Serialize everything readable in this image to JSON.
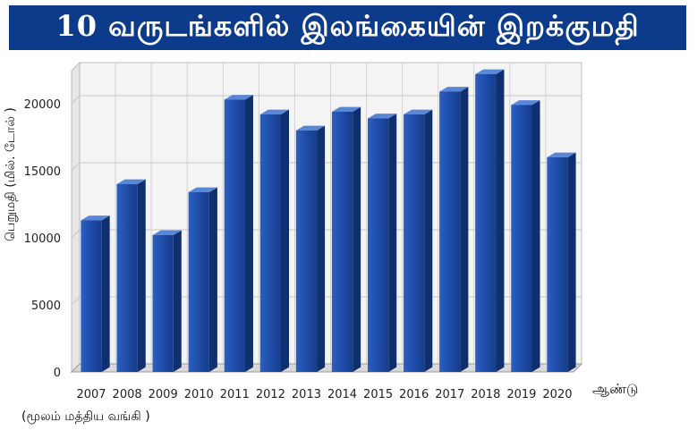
{
  "title": "10 வருடங்களில் இலங்கையின் இறக்குமதி",
  "source": "(மூலம் மத்திய வங்கி )",
  "chart_data": {
    "type": "bar",
    "title": "10 வருடங்களில் இலங்கையின் இறக்குமதி",
    "xlabel": "ஆண்டு",
    "ylabel": "பெறுமதி (மில். டோல் )",
    "categories": [
      "2007",
      "2008",
      "2009",
      "2010",
      "2011",
      "2012",
      "2013",
      "2014",
      "2015",
      "2016",
      "2017",
      "2018",
      "2019",
      "2020"
    ],
    "values": [
      11300,
      14000,
      10200,
      13400,
      20300,
      19200,
      18000,
      19400,
      18900,
      19200,
      20900,
      22200,
      19900,
      16000
    ],
    "ylim": [
      0,
      25000
    ],
    "yticks": [
      0,
      5000,
      10000,
      15000,
      20000
    ],
    "grid": true,
    "bar_color": "#1f4fa8"
  }
}
